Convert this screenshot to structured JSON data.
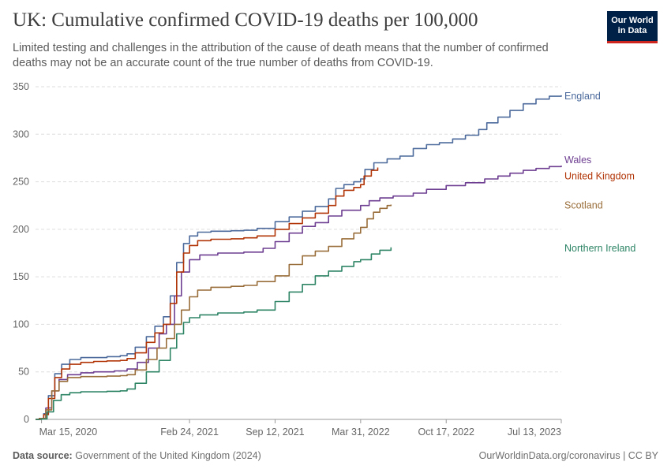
{
  "title": "UK: Cumulative confirmed COVID-19 deaths per 100,000",
  "subtitle": "Limited testing and challenges in the attribution of the cause of death means that the number of confirmed deaths may not be an accurate count of the true number of deaths from COVID-19.",
  "logo": {
    "line1": "Our World",
    "line2": "in Data"
  },
  "footer": {
    "source_label": "Data source:",
    "source_text": "Government of the United Kingdom (2024)",
    "right_text": "OurWorldinData.org/coronavirus | CC BY"
  },
  "colors": {
    "England": "#4c6a9c",
    "Wales": "#6d3e91",
    "United Kingdom": "#b13507",
    "Scotland": "#996d39",
    "Northern Ireland": "#2c8465"
  },
  "chart_data": {
    "type": "line",
    "title": "UK: Cumulative confirmed COVID-19 deaths per 100,000",
    "xlabel": "",
    "ylabel": "",
    "x_ticks": [
      "2020-03-15",
      "2021-02-24",
      "2021-09-12",
      "2022-03-31",
      "2022-10-17",
      "2023-07-13"
    ],
    "x_tick_labels": [
      "Mar 15, 2020",
      "Feb 24, 2021",
      "Sep 12, 2021",
      "Mar 31, 2022",
      "Oct 17, 2022",
      "Jul 13, 2023"
    ],
    "xlim": [
      "2020-03-01",
      "2023-07-13"
    ],
    "y_ticks": [
      0,
      50,
      100,
      150,
      200,
      250,
      300,
      350
    ],
    "ylim": [
      0,
      350
    ],
    "grid": "horizontal dashed",
    "legend": "labels at line ends (right)",
    "series": [
      {
        "name": "England",
        "points": [
          [
            "2020-03-01",
            0
          ],
          [
            "2020-03-10",
            1
          ],
          [
            "2020-03-20",
            6
          ],
          [
            "2020-03-31",
            25
          ],
          [
            "2020-04-15",
            48
          ],
          [
            "2020-05-01",
            58
          ],
          [
            "2020-05-20",
            63
          ],
          [
            "2020-06-15",
            65
          ],
          [
            "2020-07-15",
            65
          ],
          [
            "2020-08-15",
            66
          ],
          [
            "2020-09-15",
            67
          ],
          [
            "2020-10-01",
            69
          ],
          [
            "2020-10-20",
            76
          ],
          [
            "2020-11-15",
            87
          ],
          [
            "2020-12-05",
            98
          ],
          [
            "2020-12-25",
            108
          ],
          [
            "2021-01-10",
            130
          ],
          [
            "2021-01-25",
            165
          ],
          [
            "2021-02-10",
            185
          ],
          [
            "2021-02-24",
            193
          ],
          [
            "2021-03-15",
            197
          ],
          [
            "2021-04-15",
            198
          ],
          [
            "2021-06-01",
            198.5
          ],
          [
            "2021-07-01",
            199
          ],
          [
            "2021-08-01",
            201
          ],
          [
            "2021-09-12",
            208
          ],
          [
            "2021-10-15",
            213
          ],
          [
            "2021-11-15",
            219
          ],
          [
            "2021-12-15",
            224
          ],
          [
            "2022-01-15",
            232
          ],
          [
            "2022-02-01",
            243
          ],
          [
            "2022-02-20",
            247
          ],
          [
            "2022-03-15",
            250
          ],
          [
            "2022-03-31",
            253
          ],
          [
            "2022-04-10",
            263
          ],
          [
            "2022-05-01",
            270
          ],
          [
            "2022-06-01",
            274
          ],
          [
            "2022-07-01",
            277
          ],
          [
            "2022-08-01",
            285
          ],
          [
            "2022-09-01",
            289
          ],
          [
            "2022-10-01",
            291
          ],
          [
            "2022-11-01",
            295
          ],
          [
            "2022-12-01",
            299
          ],
          [
            "2023-01-01",
            305
          ],
          [
            "2023-01-20",
            312
          ],
          [
            "2023-02-15",
            318
          ],
          [
            "2023-03-15",
            325
          ],
          [
            "2023-04-15",
            332
          ],
          [
            "2023-05-15",
            337
          ],
          [
            "2023-06-15",
            340
          ],
          [
            "2023-07-13",
            341
          ]
        ]
      },
      {
        "name": "Wales",
        "points": [
          [
            "2020-03-01",
            0
          ],
          [
            "2020-03-12",
            1
          ],
          [
            "2020-03-25",
            12
          ],
          [
            "2020-04-08",
            30
          ],
          [
            "2020-04-25",
            42
          ],
          [
            "2020-05-15",
            47
          ],
          [
            "2020-06-15",
            49
          ],
          [
            "2020-07-15",
            50
          ],
          [
            "2020-09-01",
            51
          ],
          [
            "2020-10-01",
            53
          ],
          [
            "2020-10-25",
            60
          ],
          [
            "2020-11-20",
            75
          ],
          [
            "2020-12-15",
            90
          ],
          [
            "2021-01-01",
            100
          ],
          [
            "2021-01-20",
            130
          ],
          [
            "2021-02-05",
            155
          ],
          [
            "2021-02-24",
            168
          ],
          [
            "2021-03-20",
            173
          ],
          [
            "2021-05-01",
            175
          ],
          [
            "2021-07-01",
            176
          ],
          [
            "2021-08-15",
            180
          ],
          [
            "2021-09-12",
            187
          ],
          [
            "2021-10-15",
            196
          ],
          [
            "2021-11-15",
            203
          ],
          [
            "2021-12-15",
            207
          ],
          [
            "2022-01-15",
            214
          ],
          [
            "2022-02-15",
            220
          ],
          [
            "2022-03-31",
            225
          ],
          [
            "2022-04-20",
            230
          ],
          [
            "2022-05-15",
            233
          ],
          [
            "2022-06-15",
            235
          ],
          [
            "2022-08-01",
            238
          ],
          [
            "2022-09-01",
            242
          ],
          [
            "2022-10-17",
            246
          ],
          [
            "2022-12-01",
            249
          ],
          [
            "2023-01-15",
            253
          ],
          [
            "2023-02-15",
            256
          ],
          [
            "2023-03-15",
            259
          ],
          [
            "2023-04-15",
            262
          ],
          [
            "2023-05-15",
            264
          ],
          [
            "2023-06-15",
            266
          ],
          [
            "2023-07-13",
            267
          ]
        ]
      },
      {
        "name": "United Kingdom",
        "points": [
          [
            "2020-03-01",
            0
          ],
          [
            "2020-03-10",
            1
          ],
          [
            "2020-03-20",
            5
          ],
          [
            "2020-03-31",
            22
          ],
          [
            "2020-04-15",
            44
          ],
          [
            "2020-05-01",
            53
          ],
          [
            "2020-05-20",
            58
          ],
          [
            "2020-06-15",
            60
          ],
          [
            "2020-07-15",
            61
          ],
          [
            "2020-08-15",
            61.5
          ],
          [
            "2020-09-15",
            62
          ],
          [
            "2020-10-01",
            64
          ],
          [
            "2020-10-20",
            70
          ],
          [
            "2020-11-15",
            81
          ],
          [
            "2020-12-05",
            91
          ],
          [
            "2020-12-25",
            100
          ],
          [
            "2021-01-10",
            122
          ],
          [
            "2021-01-25",
            155
          ],
          [
            "2021-02-10",
            175
          ],
          [
            "2021-02-24",
            183
          ],
          [
            "2021-03-15",
            188
          ],
          [
            "2021-04-15",
            189.5
          ],
          [
            "2021-06-01",
            190
          ],
          [
            "2021-07-01",
            191
          ],
          [
            "2021-08-01",
            193
          ],
          [
            "2021-09-12",
            200
          ],
          [
            "2021-10-15",
            206
          ],
          [
            "2021-11-15",
            212
          ],
          [
            "2021-12-15",
            217
          ],
          [
            "2022-01-15",
            225
          ],
          [
            "2022-02-01",
            235
          ],
          [
            "2022-02-20",
            241
          ],
          [
            "2022-03-15",
            244
          ],
          [
            "2022-03-31",
            247
          ],
          [
            "2022-04-08",
            256
          ],
          [
            "2022-04-25",
            262
          ],
          [
            "2022-05-10",
            265
          ]
        ]
      },
      {
        "name": "Scotland",
        "points": [
          [
            "2020-03-01",
            0
          ],
          [
            "2020-03-12",
            1
          ],
          [
            "2020-03-25",
            10
          ],
          [
            "2020-04-08",
            30
          ],
          [
            "2020-04-25",
            40
          ],
          [
            "2020-05-15",
            44
          ],
          [
            "2020-06-15",
            45
          ],
          [
            "2020-08-15",
            45.5
          ],
          [
            "2020-09-15",
            46
          ],
          [
            "2020-10-01",
            47
          ],
          [
            "2020-10-20",
            52
          ],
          [
            "2020-11-15",
            63
          ],
          [
            "2020-12-10",
            75
          ],
          [
            "2021-01-01",
            85
          ],
          [
            "2021-01-20",
            100
          ],
          [
            "2021-02-05",
            115
          ],
          [
            "2021-02-24",
            129
          ],
          [
            "2021-03-15",
            136
          ],
          [
            "2021-04-15",
            139
          ],
          [
            "2021-06-01",
            140
          ],
          [
            "2021-07-01",
            141
          ],
          [
            "2021-08-01",
            145
          ],
          [
            "2021-09-12",
            151
          ],
          [
            "2021-10-15",
            163
          ],
          [
            "2021-11-15",
            172
          ],
          [
            "2021-12-15",
            177
          ],
          [
            "2022-01-15",
            182
          ],
          [
            "2022-02-15",
            190
          ],
          [
            "2022-03-15",
            196
          ],
          [
            "2022-03-31",
            202
          ],
          [
            "2022-04-15",
            211
          ],
          [
            "2022-04-30",
            218
          ],
          [
            "2022-05-15",
            222
          ],
          [
            "2022-06-01",
            225
          ],
          [
            "2022-06-10",
            226
          ]
        ]
      },
      {
        "name": "Northern Ireland",
        "points": [
          [
            "2020-03-01",
            0
          ],
          [
            "2020-03-15",
            0.5
          ],
          [
            "2020-03-28",
            8
          ],
          [
            "2020-04-12",
            20
          ],
          [
            "2020-04-30",
            26
          ],
          [
            "2020-05-20",
            28
          ],
          [
            "2020-06-15",
            29
          ],
          [
            "2020-08-15",
            29.5
          ],
          [
            "2020-09-15",
            30
          ],
          [
            "2020-10-01",
            32
          ],
          [
            "2020-10-20",
            38
          ],
          [
            "2020-11-15",
            50
          ],
          [
            "2020-12-15",
            62
          ],
          [
            "2021-01-10",
            75
          ],
          [
            "2021-01-25",
            90
          ],
          [
            "2021-02-10",
            102
          ],
          [
            "2021-02-24",
            107
          ],
          [
            "2021-03-20",
            110
          ],
          [
            "2021-05-01",
            112
          ],
          [
            "2021-07-01",
            113
          ],
          [
            "2021-08-01",
            115
          ],
          [
            "2021-09-12",
            124
          ],
          [
            "2021-10-15",
            134
          ],
          [
            "2021-11-15",
            142
          ],
          [
            "2021-12-15",
            151
          ],
          [
            "2022-01-15",
            156
          ],
          [
            "2022-02-15",
            161
          ],
          [
            "2022-03-15",
            166
          ],
          [
            "2022-03-31",
            168
          ],
          [
            "2022-04-25",
            174
          ],
          [
            "2022-05-15",
            178
          ],
          [
            "2022-06-10",
            181
          ]
        ]
      }
    ]
  }
}
